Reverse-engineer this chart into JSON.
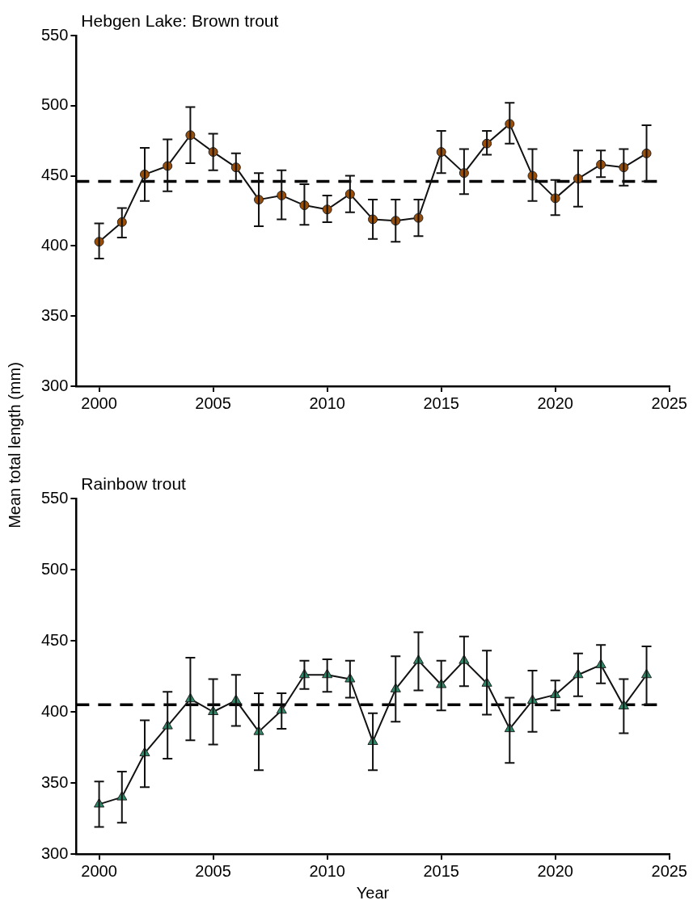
{
  "chart_data": [
    {
      "type": "line",
      "title": "Hebgen Lake: Brown trout",
      "ylabel": "Mean total length (mm)",
      "marker": "circle",
      "color": "#9a4d06",
      "grid": false,
      "x": [
        2000,
        2001,
        2002,
        2003,
        2004,
        2005,
        2006,
        2007,
        2008,
        2009,
        2010,
        2011,
        2012,
        2013,
        2014,
        2015,
        2016,
        2017,
        2018,
        2019,
        2020,
        2021,
        2022,
        2023,
        2024
      ],
      "values": [
        403,
        417,
        451,
        457,
        479,
        467,
        456,
        433,
        436,
        429,
        426,
        437,
        419,
        418,
        420,
        467,
        452,
        473,
        487,
        450,
        434,
        448,
        458,
        456,
        466
      ],
      "errors": [
        [
          391,
          416
        ],
        [
          406,
          427
        ],
        [
          432,
          470
        ],
        [
          439,
          476
        ],
        [
          459,
          499
        ],
        [
          454,
          480
        ],
        [
          446,
          466
        ],
        [
          414,
          452
        ],
        [
          419,
          454
        ],
        [
          415,
          444
        ],
        [
          417,
          436
        ],
        [
          424,
          450
        ],
        [
          405,
          433
        ],
        [
          403,
          433
        ],
        [
          407,
          433
        ],
        [
          452,
          482
        ],
        [
          437,
          469
        ],
        [
          465,
          482
        ],
        [
          473,
          502
        ],
        [
          432,
          469
        ],
        [
          422,
          447
        ],
        [
          428,
          468
        ],
        [
          449,
          468
        ],
        [
          443,
          469
        ],
        [
          446,
          486
        ]
      ],
      "ref_lines": [
        {
          "axis": "y",
          "value": 446,
          "line_style": "dashed"
        }
      ],
      "xlim": [
        1999,
        2025
      ],
      "xticks": [
        2000,
        2005,
        2010,
        2015,
        2020,
        2025
      ],
      "ylim": [
        300,
        550
      ],
      "yticks": [
        300,
        350,
        400,
        450,
        500,
        550
      ]
    },
    {
      "type": "line",
      "title": "Rainbow trout",
      "xlabel": "Year",
      "marker": "triangle",
      "color": "#2e8a68",
      "grid": false,
      "x": [
        2000,
        2001,
        2002,
        2003,
        2004,
        2005,
        2006,
        2007,
        2008,
        2009,
        2010,
        2011,
        2012,
        2013,
        2014,
        2015,
        2016,
        2017,
        2018,
        2019,
        2020,
        2021,
        2022,
        2023,
        2024
      ],
      "values": [
        335,
        340,
        371,
        390,
        409,
        400,
        408,
        386,
        401,
        426,
        426,
        423,
        379,
        416,
        436,
        419,
        436,
        420,
        388,
        408,
        412,
        426,
        433,
        404,
        426
      ],
      "errors": [
        [
          319,
          351
        ],
        [
          322,
          358
        ],
        [
          347,
          394
        ],
        [
          367,
          414
        ],
        [
          380,
          438
        ],
        [
          377,
          423
        ],
        [
          390,
          426
        ],
        [
          359,
          413
        ],
        [
          388,
          413
        ],
        [
          416,
          436
        ],
        [
          414,
          437
        ],
        [
          410,
          436
        ],
        [
          359,
          399
        ],
        [
          393,
          439
        ],
        [
          415,
          456
        ],
        [
          401,
          436
        ],
        [
          418,
          453
        ],
        [
          398,
          443
        ],
        [
          364,
          410
        ],
        [
          386,
          429
        ],
        [
          401,
          422
        ],
        [
          411,
          441
        ],
        [
          420,
          447
        ],
        [
          385,
          423
        ],
        [
          405,
          446
        ]
      ],
      "ref_lines": [
        {
          "axis": "y",
          "value": 405,
          "line_style": "dashed"
        }
      ],
      "xlim": [
        1999,
        2025
      ],
      "xticks": [
        2000,
        2005,
        2010,
        2015,
        2020,
        2025
      ],
      "ylim": [
        300,
        550
      ],
      "yticks": [
        300,
        350,
        400,
        450,
        500,
        550
      ]
    }
  ]
}
